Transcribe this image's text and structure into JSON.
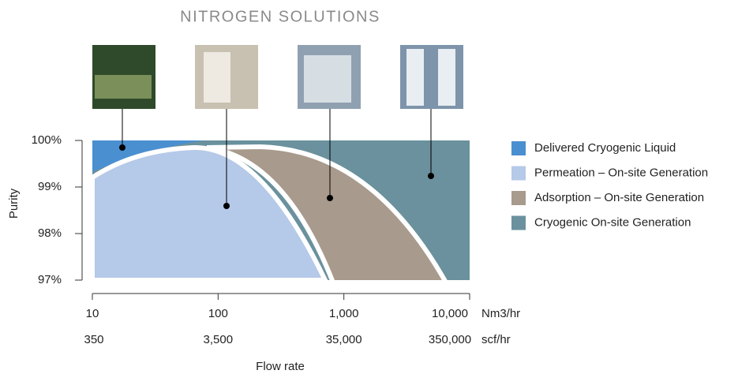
{
  "chart_data": {
    "type": "region",
    "title": "NITROGEN SOLUTIONS",
    "ylabel": "Purity",
    "xlabel": "Flow rate",
    "x_unit": "Nm3/hr",
    "x2_unit": "scf/hr",
    "log_x": true,
    "xlim": [
      10,
      10000
    ],
    "xticks": [
      10,
      100,
      {
        "value": 1000,
        "label": "1,000"
      },
      {
        "value": 10000,
        "label": "10,000"
      }
    ],
    "x2lim": [
      350,
      350000
    ],
    "x2ticks": [
      350,
      {
        "value": 3500,
        "label": "3,500"
      },
      {
        "value": 35000,
        "label": "35,000"
      },
      {
        "value": 350000,
        "label": "350,000"
      }
    ],
    "ylim": [
      97,
      100
    ],
    "yticks": [
      {
        "value": 97,
        "label": "97%"
      },
      {
        "value": 98,
        "label": "98%"
      },
      {
        "value": 99,
        "label": "99%"
      },
      {
        "value": 100,
        "label": "100%"
      }
    ],
    "series": [
      {
        "name": "Delivered Cryogenic Liquid",
        "color": "#4a8fd0"
      },
      {
        "name": "Permeation – On-site Generation",
        "color": "#b5c9e8"
      },
      {
        "name": "Adsorption – On-site Generation",
        "color": "#a89a8c"
      },
      {
        "name": "Cryogenic On-site Generation",
        "color": "#6a919d"
      }
    ]
  }
}
